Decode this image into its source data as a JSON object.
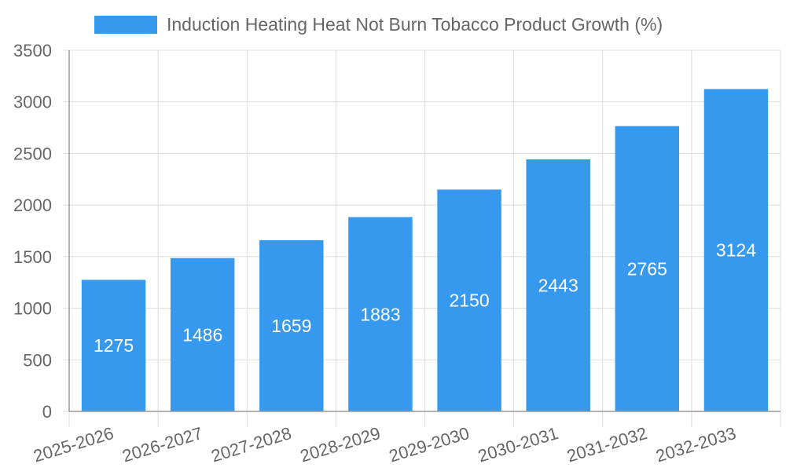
{
  "chart_data": {
    "type": "bar",
    "categories": [
      "2025-2026",
      "2026-2027",
      "2027-2028",
      "2028-2029",
      "2029-2030",
      "2030-2031",
      "2031-2032",
      "2032-2033"
    ],
    "series": [
      {
        "name": "Induction Heating Heat Not Burn Tobacco Product Growth (%)",
        "values": [
          1275,
          1486,
          1659,
          1883,
          2150,
          2443,
          2765,
          3124
        ]
      }
    ],
    "ylim": [
      0,
      3500
    ],
    "yticks": [
      0,
      500,
      1000,
      1500,
      2000,
      2500,
      3000,
      3500
    ],
    "grid": true,
    "legend_position": "top",
    "data_labels": true,
    "colors": {
      "bar": "#3799ee",
      "grid": "#dddddd",
      "axis": "#999999",
      "tick_text": "#666666",
      "data_label": "#ffffff"
    }
  }
}
